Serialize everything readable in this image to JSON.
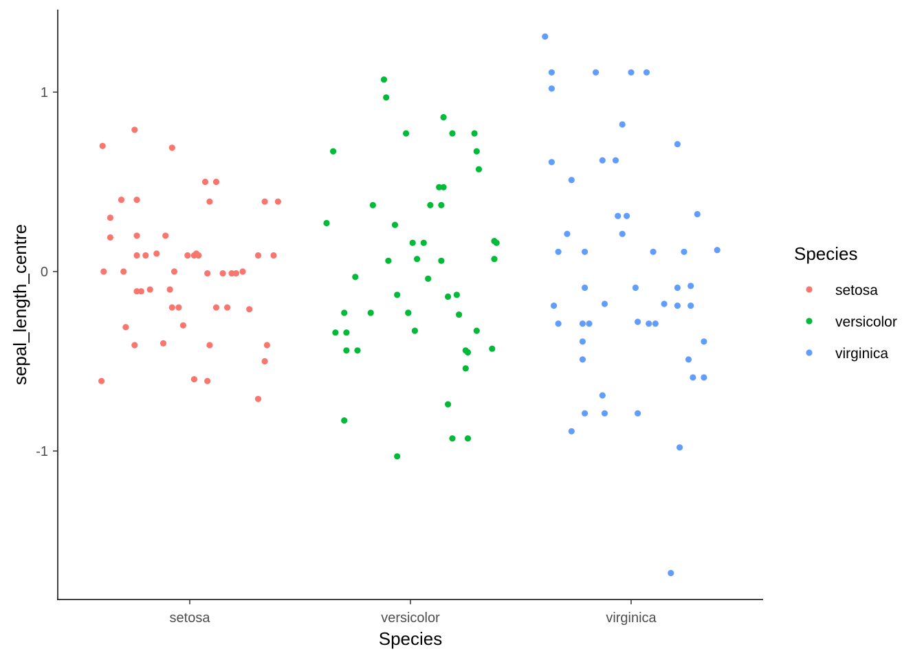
{
  "chart_data": {
    "type": "scatter",
    "xlabel": "Species",
    "ylabel": "sepal_length_centre",
    "categories": [
      "setosa",
      "versicolor",
      "virginica"
    ],
    "ylim": [
      -1.82,
      1.45
    ],
    "y_ticks": [
      -1,
      0,
      1
    ],
    "y_tick_labels": [
      "-1",
      "0",
      "1"
    ],
    "grid": false,
    "legend": {
      "title": "Species",
      "position": "right",
      "entries": [
        "setosa",
        "versicolor",
        "virginica"
      ]
    },
    "series": [
      {
        "name": "setosa",
        "color": "#F8766D",
        "points": [
          [
            -0.395,
            0.7
          ],
          [
            -0.39,
            0.0
          ],
          [
            -0.4,
            -0.61
          ],
          [
            -0.36,
            0.3
          ],
          [
            -0.36,
            0.19
          ],
          [
            -0.31,
            0.4
          ],
          [
            -0.3,
            0.0
          ],
          [
            -0.29,
            -0.31
          ],
          [
            -0.25,
            0.79
          ],
          [
            -0.25,
            -0.41
          ],
          [
            -0.24,
            0.4
          ],
          [
            -0.24,
            0.2
          ],
          [
            -0.24,
            0.09
          ],
          [
            -0.24,
            -0.11
          ],
          [
            -0.22,
            -0.11
          ],
          [
            -0.2,
            0.09
          ],
          [
            -0.18,
            -0.1
          ],
          [
            -0.15,
            0.1
          ],
          [
            -0.12,
            -0.4
          ],
          [
            -0.11,
            0.2
          ],
          [
            -0.09,
            -0.1
          ],
          [
            -0.08,
            0.69
          ],
          [
            -0.08,
            -0.2
          ],
          [
            -0.07,
            0.0
          ],
          [
            -0.05,
            -0.2
          ],
          [
            -0.03,
            -0.3
          ],
          [
            -0.01,
            0.09
          ],
          [
            0.02,
            0.09
          ],
          [
            0.03,
            0.1
          ],
          [
            0.02,
            -0.6
          ],
          [
            0.04,
            0.09
          ],
          [
            0.07,
            0.5
          ],
          [
            0.08,
            -0.01
          ],
          [
            0.08,
            -0.61
          ],
          [
            0.09,
            0.39
          ],
          [
            0.09,
            -0.41
          ],
          [
            0.12,
            0.5
          ],
          [
            0.12,
            -0.2
          ],
          [
            0.15,
            -0.01
          ],
          [
            0.17,
            -0.2
          ],
          [
            0.19,
            -0.01
          ],
          [
            0.21,
            -0.01
          ],
          [
            0.24,
            0.0
          ],
          [
            0.27,
            -0.21
          ],
          [
            0.31,
            -0.71
          ],
          [
            0.31,
            0.09
          ],
          [
            0.34,
            0.39
          ],
          [
            0.34,
            -0.5
          ],
          [
            0.35,
            -0.41
          ],
          [
            0.38,
            0.09
          ],
          [
            0.4,
            0.39
          ]
        ]
      },
      {
        "name": "versicolor",
        "color": "#00BA38",
        "points": [
          [
            -0.38,
            0.27
          ],
          [
            -0.35,
            0.67
          ],
          [
            -0.34,
            -0.34
          ],
          [
            -0.3,
            -0.23
          ],
          [
            -0.29,
            -0.34
          ],
          [
            -0.29,
            -0.44
          ],
          [
            -0.3,
            -0.83
          ],
          [
            -0.25,
            -0.03
          ],
          [
            -0.24,
            -0.44
          ],
          [
            -0.18,
            -0.23
          ],
          [
            -0.17,
            0.37
          ],
          [
            -0.12,
            1.07
          ],
          [
            -0.11,
            0.97
          ],
          [
            -0.1,
            0.06
          ],
          [
            -0.07,
            0.26
          ],
          [
            -0.06,
            -0.13
          ],
          [
            -0.06,
            -1.03
          ],
          [
            -0.02,
            0.77
          ],
          [
            -0.01,
            -0.23
          ],
          [
            -0.01,
            -0.23
          ],
          [
            0.01,
            0.16
          ],
          [
            0.02,
            -0.33
          ],
          [
            0.03,
            0.07
          ],
          [
            0.06,
            0.16
          ],
          [
            0.08,
            -0.04
          ],
          [
            0.09,
            0.37
          ],
          [
            0.13,
            0.47
          ],
          [
            0.14,
            0.37
          ],
          [
            0.14,
            0.06
          ],
          [
            0.15,
            0.86
          ],
          [
            0.15,
            0.47
          ],
          [
            0.17,
            -0.14
          ],
          [
            0.17,
            -0.74
          ],
          [
            0.19,
            0.77
          ],
          [
            0.19,
            -0.93
          ],
          [
            0.21,
            -0.13
          ],
          [
            0.22,
            -0.24
          ],
          [
            0.25,
            -0.44
          ],
          [
            0.25,
            -0.54
          ],
          [
            0.26,
            -0.93
          ],
          [
            0.26,
            -0.45
          ],
          [
            0.29,
            0.77
          ],
          [
            0.3,
            0.67
          ],
          [
            0.3,
            -0.33
          ],
          [
            0.31,
            0.57
          ],
          [
            0.37,
            -0.43
          ],
          [
            0.38,
            0.07
          ],
          [
            0.38,
            0.17
          ],
          [
            0.39,
            0.16
          ]
        ]
      },
      {
        "name": "virginica",
        "color": "#619CFF",
        "points": [
          [
            -0.39,
            1.31
          ],
          [
            -0.36,
            1.11
          ],
          [
            -0.36,
            1.02
          ],
          [
            -0.36,
            0.61
          ],
          [
            -0.35,
            -0.19
          ],
          [
            -0.33,
            0.11
          ],
          [
            -0.33,
            -0.29
          ],
          [
            -0.29,
            0.21
          ],
          [
            -0.27,
            0.51
          ],
          [
            -0.27,
            -0.89
          ],
          [
            -0.22,
            -0.29
          ],
          [
            -0.22,
            -0.39
          ],
          [
            -0.22,
            -0.49
          ],
          [
            -0.21,
            -0.09
          ],
          [
            -0.21,
            0.11
          ],
          [
            -0.21,
            -0.79
          ],
          [
            -0.19,
            -0.29
          ],
          [
            -0.16,
            1.11
          ],
          [
            -0.13,
            0.62
          ],
          [
            -0.12,
            -0.18
          ],
          [
            -0.12,
            -0.79
          ],
          [
            -0.13,
            -0.69
          ],
          [
            -0.07,
            0.62
          ],
          [
            -0.06,
            0.31
          ],
          [
            -0.04,
            0.82
          ],
          [
            -0.04,
            0.21
          ],
          [
            -0.02,
            0.31
          ],
          [
            0.0,
            1.11
          ],
          [
            0.02,
            -0.09
          ],
          [
            0.03,
            -0.28
          ],
          [
            0.03,
            -0.79
          ],
          [
            0.07,
            1.11
          ],
          [
            0.08,
            -0.29
          ],
          [
            0.1,
            0.11
          ],
          [
            0.11,
            -0.29
          ],
          [
            0.15,
            -0.18
          ],
          [
            0.18,
            -1.68
          ],
          [
            0.21,
            -0.09
          ],
          [
            0.21,
            -0.19
          ],
          [
            0.21,
            0.71
          ],
          [
            0.22,
            -0.98
          ],
          [
            0.24,
            0.11
          ],
          [
            0.26,
            -0.49
          ],
          [
            0.27,
            -0.08
          ],
          [
            0.27,
            -0.19
          ],
          [
            0.28,
            -0.59
          ],
          [
            0.3,
            0.32
          ],
          [
            0.33,
            -0.39
          ],
          [
            0.33,
            -0.59
          ],
          [
            0.39,
            0.12
          ]
        ]
      }
    ]
  }
}
